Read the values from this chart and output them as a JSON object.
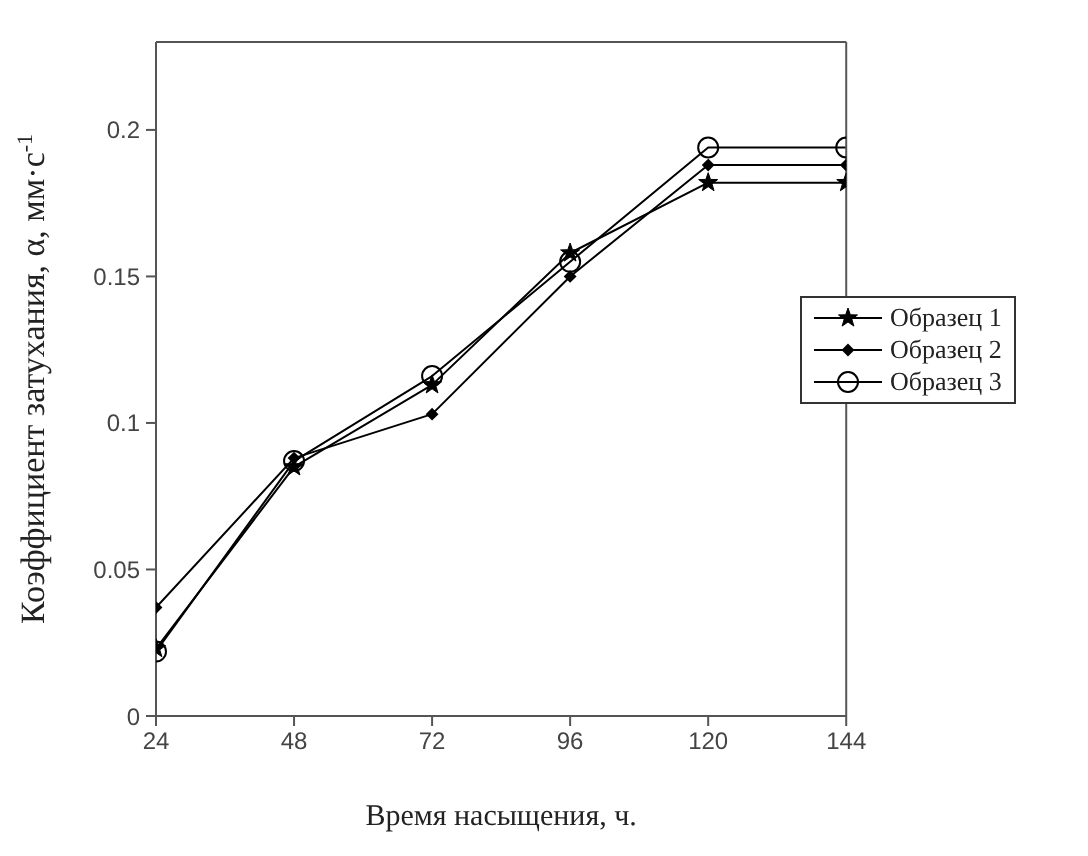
{
  "chart_data": {
    "type": "line",
    "xlabel": "Время насыщения, ч.",
    "ylabel": "Коэффициент затухания, α, мм·с$^{-1}$",
    "x": [
      24,
      48,
      72,
      96,
      120,
      144
    ],
    "series": [
      {
        "name": "Образец 1",
        "color": "#000000",
        "marker": "star",
        "values": [
          0.023,
          0.085,
          0.113,
          0.158,
          0.182,
          0.182
        ]
      },
      {
        "name": "Образец 2",
        "color": "#000000",
        "marker": "diamond",
        "values": [
          0.037,
          0.088,
          0.103,
          0.15,
          0.188,
          0.188
        ]
      },
      {
        "name": "Образец 3",
        "color": "#000000",
        "marker": "circle",
        "values": [
          0.022,
          0.087,
          0.116,
          0.155,
          0.194,
          0.194
        ]
      }
    ],
    "xlim": [
      24,
      144
    ],
    "xticks": [
      24,
      48,
      72,
      96,
      120,
      144
    ],
    "ylim": [
      0,
      0.23
    ],
    "yticks": [
      0,
      0.05,
      0.1,
      0.15,
      0.2
    ],
    "grid": false,
    "legend": "right",
    "line_style": "solid"
  }
}
